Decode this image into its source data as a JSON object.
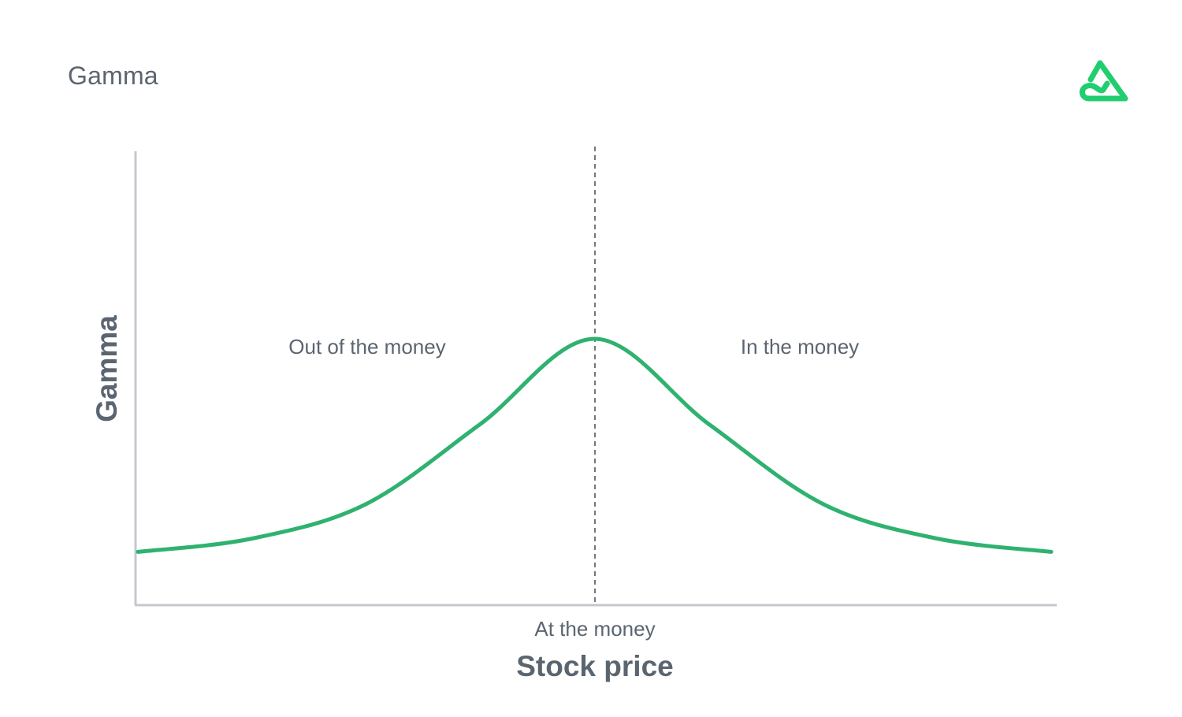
{
  "page": {
    "title": "Gamma"
  },
  "brand": {
    "logo_icon": "triangle-loop-logo-icon",
    "color": "#21ce6f"
  },
  "chart_data": {
    "type": "line",
    "title": "Gamma",
    "xlabel": "Stock price",
    "ylabel": "Gamma",
    "x_tick_labels": [
      "At the money"
    ],
    "annotations": [
      "Out of the money",
      "In the money"
    ],
    "series": [
      {
        "color": "#2fb26f",
        "x": [
          -1.0,
          -0.75,
          -0.5,
          -0.25,
          0.0,
          0.25,
          0.5,
          0.75,
          1.0
        ],
        "values": [
          0.2,
          0.25,
          0.38,
          0.68,
          1.0,
          0.68,
          0.38,
          0.25,
          0.2
        ]
      }
    ],
    "xlim": [
      -1.0,
      1.0
    ],
    "ylim": [
      0,
      1.0
    ],
    "reference_line": {
      "x": 0.0,
      "style": "dashed",
      "label": "At the money"
    },
    "grid": false,
    "axis_color": "#c4c8cc",
    "text_color": "#5b6570"
  }
}
